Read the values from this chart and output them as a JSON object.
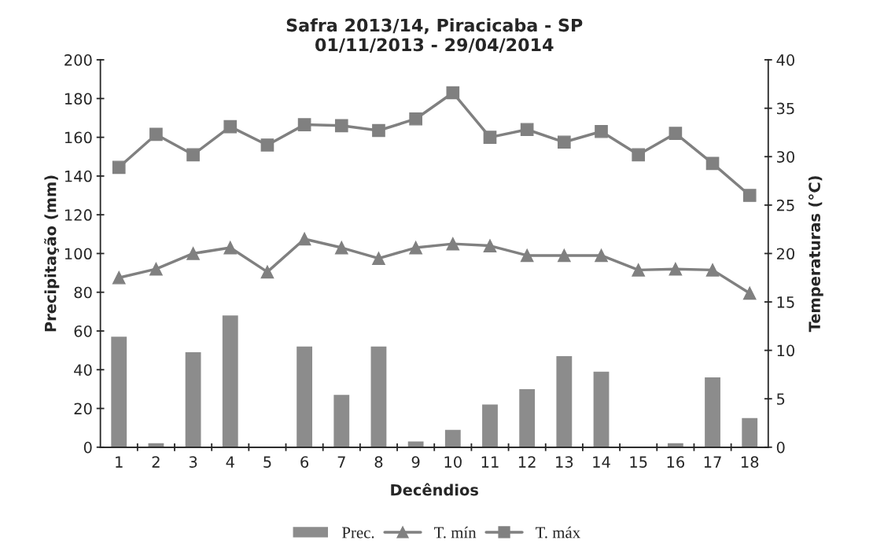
{
  "chart_data": {
    "type": "bar",
    "title": "Safra 2013/14, Piracicaba - SP\n01/11/2013 - 29/04/2014",
    "xlabel": "Decêndios",
    "ylabel": "Precipitação (mm)",
    "y2label": "Temperaturas (°C)",
    "categories": [
      "1",
      "2",
      "3",
      "4",
      "5",
      "6",
      "7",
      "8",
      "9",
      "10",
      "11",
      "12",
      "13",
      "14",
      "15",
      "16",
      "17",
      "18"
    ],
    "series": [
      {
        "name": "Prec.",
        "color": "#8c8c8c",
        "values": [
          57,
          2,
          49,
          68,
          0,
          52,
          27,
          52,
          3,
          9,
          22,
          30,
          47,
          39,
          0,
          2,
          36,
          15
        ]
      },
      {
        "name": "T. mín",
        "type": "line",
        "axis": "y2",
        "marker": "triangle",
        "color": "#808080",
        "values": [
          17.5,
          18.4,
          20.0,
          20.6,
          18.1,
          21.5,
          20.6,
          19.5,
          20.6,
          21.0,
          20.8,
          19.8,
          19.8,
          19.8,
          18.3,
          18.4,
          18.3,
          15.9
        ]
      },
      {
        "name": "T. máx",
        "type": "line",
        "axis": "y2",
        "marker": "square",
        "color": "#808080",
        "values": [
          28.9,
          32.3,
          30.2,
          33.1,
          31.2,
          33.3,
          33.2,
          32.7,
          33.9,
          36.6,
          32.0,
          32.8,
          31.5,
          32.6,
          30.2,
          32.4,
          29.3,
          26.0
        ]
      }
    ],
    "ylim": [
      0,
      200
    ],
    "yticks": [
      0,
      20,
      40,
      60,
      80,
      100,
      120,
      140,
      160,
      180,
      200
    ],
    "y2lim": [
      0,
      40
    ],
    "y2ticks": [
      0,
      5,
      10,
      15,
      20,
      25,
      30,
      35,
      40
    ],
    "grid": false,
    "legend": "bottom"
  }
}
